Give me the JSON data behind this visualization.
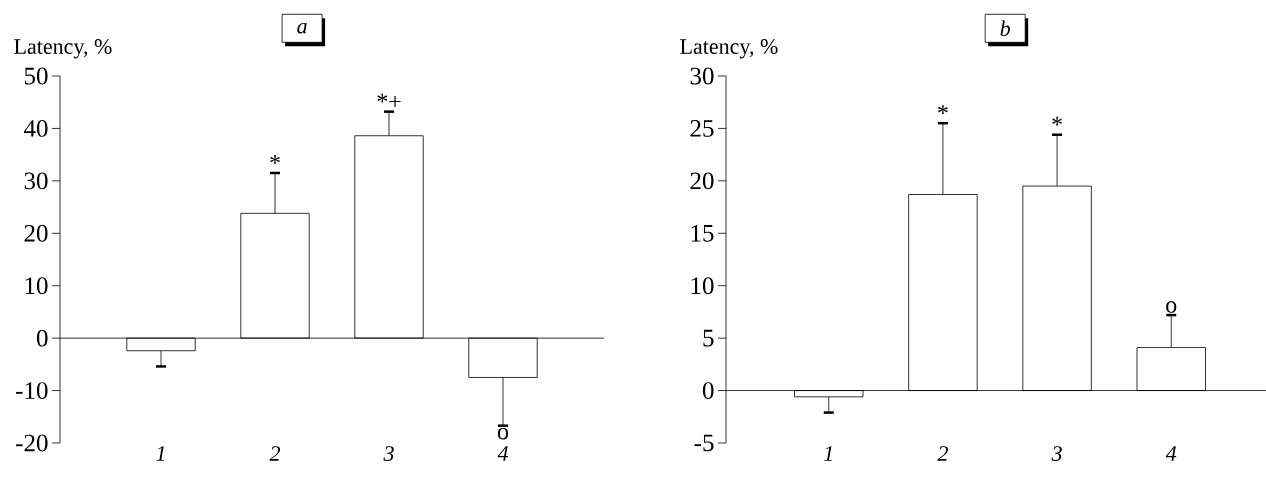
{
  "chart_data": [
    {
      "type": "bar",
      "title": "a",
      "ylabel": "Latency, %",
      "categories": [
        "1",
        "2",
        "3",
        "4"
      ],
      "values": [
        -2.4,
        23.8,
        38.6,
        -7.5
      ],
      "color": "#ffffff",
      "errors": [
        [
          -5.4,
          -2.4
        ],
        [
          23.8,
          31.5
        ],
        [
          38.6,
          43.2
        ],
        [
          -16.7,
          -7.5
        ]
      ],
      "ylim": [
        -20,
        50
      ],
      "yticks": [
        -20,
        -10,
        0,
        10,
        20,
        30,
        40,
        50
      ],
      "annotations": [
        {
          "text": "*",
          "x": "2",
          "y": 31.5
        },
        {
          "text": "*+",
          "x": "3",
          "y": 43.2
        },
        {
          "text": "o",
          "x": "4",
          "y": -16.7
        }
      ]
    },
    {
      "type": "bar",
      "title": "b",
      "ylabel": "Latency, %",
      "categories": [
        "1",
        "2",
        "3",
        "4"
      ],
      "values": [
        -0.6,
        18.7,
        19.5,
        4.1
      ],
      "color": "#ffffff",
      "errors": [
        [
          -2.1,
          -0.6
        ],
        [
          18.7,
          25.5
        ],
        [
          19.5,
          24.4
        ],
        [
          4.1,
          7.2
        ]
      ],
      "ylim": [
        -5,
        30
      ],
      "yticks": [
        -5,
        0,
        5,
        10,
        15,
        20,
        25,
        30
      ],
      "annotations": [
        {
          "text": "*",
          "x": "2",
          "y": 25.5
        },
        {
          "text": "*",
          "x": "3",
          "y": 24.4
        },
        {
          "text": "o",
          "x": "4",
          "y": 7.2
        }
      ]
    }
  ]
}
